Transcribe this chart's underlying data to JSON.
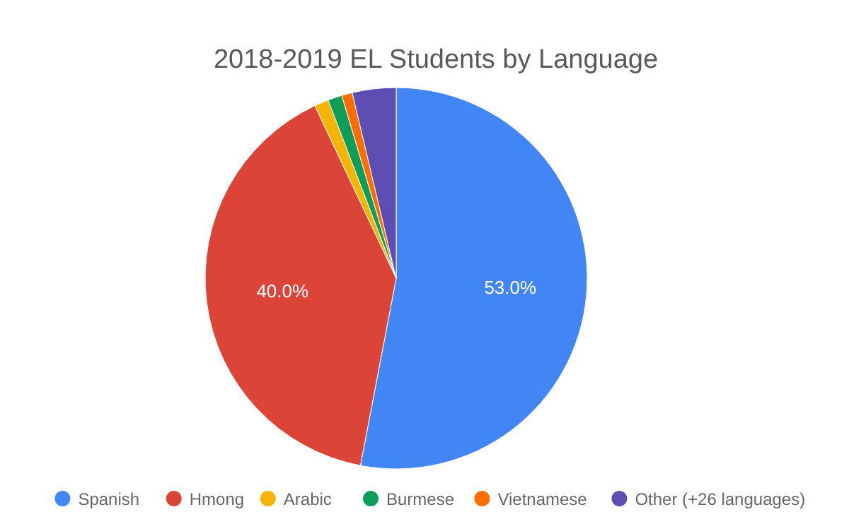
{
  "chart_data": {
    "type": "pie",
    "title": "2018-2019 EL Students by Language",
    "categories": [
      "Spanish",
      "Hmong",
      "Arabic",
      "Burmese",
      "Vietnamese",
      "Other (+26 languages)"
    ],
    "values": [
      53.0,
      40.0,
      1.2,
      1.2,
      0.9,
      3.7
    ],
    "colors": [
      "#4285f4",
      "#db4437",
      "#f4b400",
      "#0f9d58",
      "#ff6d00",
      "#5e4db2"
    ],
    "value_labels": [
      "53.0%",
      "40.0%",
      null,
      null,
      null,
      null
    ],
    "legend": "bottom"
  }
}
